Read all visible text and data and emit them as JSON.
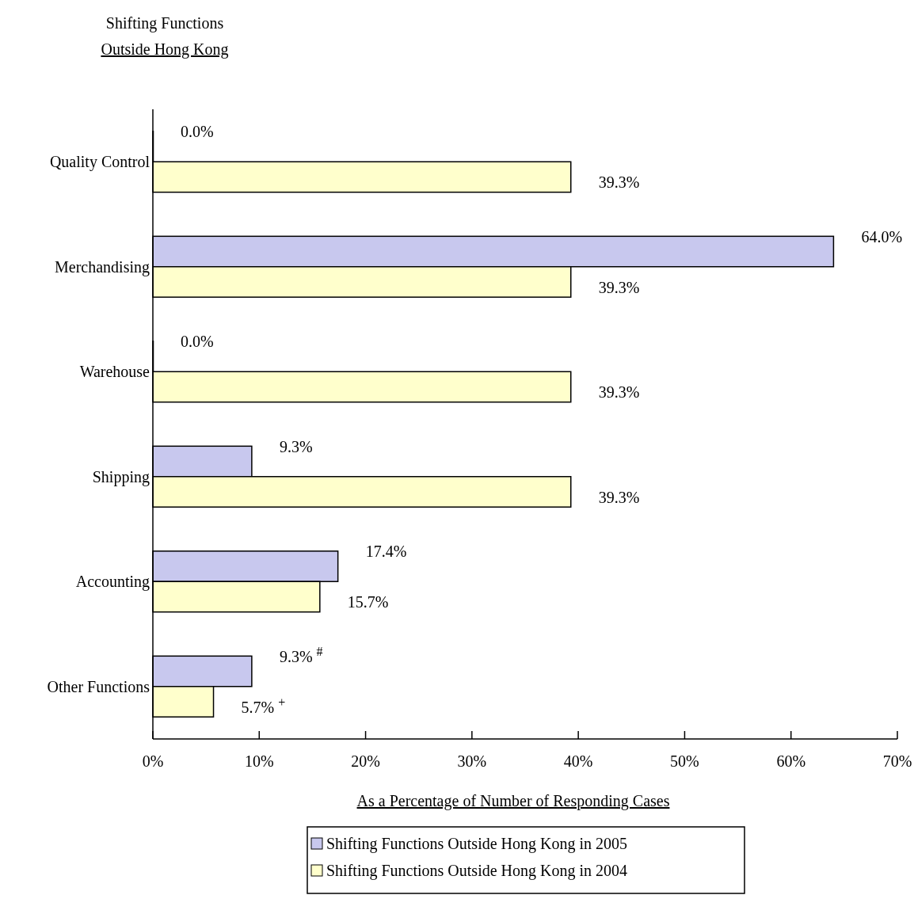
{
  "chart_data": {
    "type": "bar",
    "orientation": "horizontal",
    "title": "Shifting Functions",
    "subtitle": "Outside Hong Kong",
    "xlabel": "As a Percentage of Number of Responding Cases",
    "categories": [
      "Quality Control",
      "Merchandising",
      "Warehouse",
      "Shipping",
      "Accounting",
      "Other Functions"
    ],
    "series": [
      {
        "name": "Shifting Functions Outside Hong Kong in 2005",
        "color": "#c8c8ee",
        "values": [
          0,
          64.0,
          0,
          9.3,
          17.4,
          9.3
        ],
        "value_labels": [
          "0.0%",
          "64.0%",
          "0.0%",
          "9.3%",
          "17.4%",
          "9.3% $^{#}$"
        ]
      },
      {
        "name": "Shifting Functions Outside Hong Kong in 2004",
        "color": "#ffffcc",
        "values": [
          39.3,
          39.3,
          39.3,
          39.3,
          15.7,
          5.7
        ],
        "value_labels": [
          "39.3%",
          "39.3%",
          "39.3%",
          "39.3%",
          "15.7%",
          "5.7% $^{+}$"
        ]
      }
    ],
    "xlim": [
      0,
      70
    ],
    "xticks": [
      {
        "value": 0,
        "label": "0%"
      },
      {
        "value": 10,
        "label": "10%"
      },
      {
        "value": 20,
        "label": "20%"
      },
      {
        "value": 30,
        "label": "30%"
      },
      {
        "value": 40,
        "label": "40%"
      },
      {
        "value": 50,
        "label": "50%"
      },
      {
        "value": 60,
        "label": "60%"
      },
      {
        "value": 70,
        "label": "70%"
      }
    ],
    "grid": false,
    "legend": "bottom"
  }
}
